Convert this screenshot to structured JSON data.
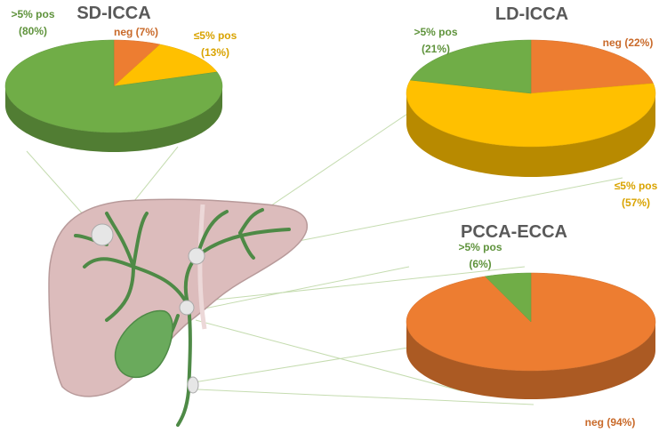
{
  "chart_data": [
    {
      "type": "pie",
      "title": "SD-ICCA",
      "categories": [
        "neg",
        "≤5% pos",
        ">5% pos"
      ],
      "values": [
        7,
        13,
        80
      ],
      "value_labels": [
        "(7%)",
        "(13%)",
        "(80%)"
      ],
      "colors": [
        "#ED7D31",
        "#FFC000",
        "#70AD47"
      ]
    },
    {
      "type": "pie",
      "title": "LD-ICCA",
      "categories": [
        "neg",
        "≤5% pos",
        ">5% pos"
      ],
      "values": [
        22,
        57,
        21
      ],
      "value_labels": [
        "(22%)",
        "(57%)",
        "(21%)"
      ],
      "colors": [
        "#ED7D31",
        "#FFC000",
        "#70AD47"
      ]
    },
    {
      "type": "pie",
      "title": "PCCA-ECCA",
      "categories": [
        "neg",
        ">5% pos"
      ],
      "values": [
        94,
        6
      ],
      "value_labels": [
        "(94%)",
        "(6%)"
      ],
      "colors": [
        "#ED7D31",
        "#70AD47"
      ]
    }
  ]
}
